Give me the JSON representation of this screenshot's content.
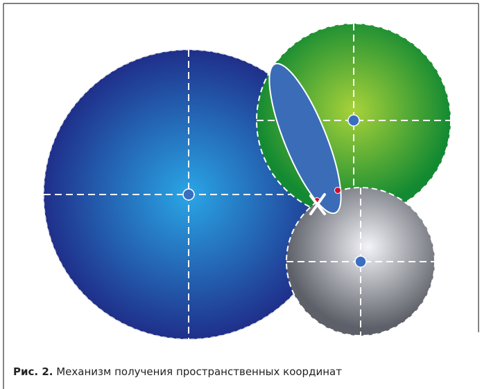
{
  "caption": {
    "label": "Рис. 2.",
    "text": "Механизм получения пространственных координат"
  }
}
